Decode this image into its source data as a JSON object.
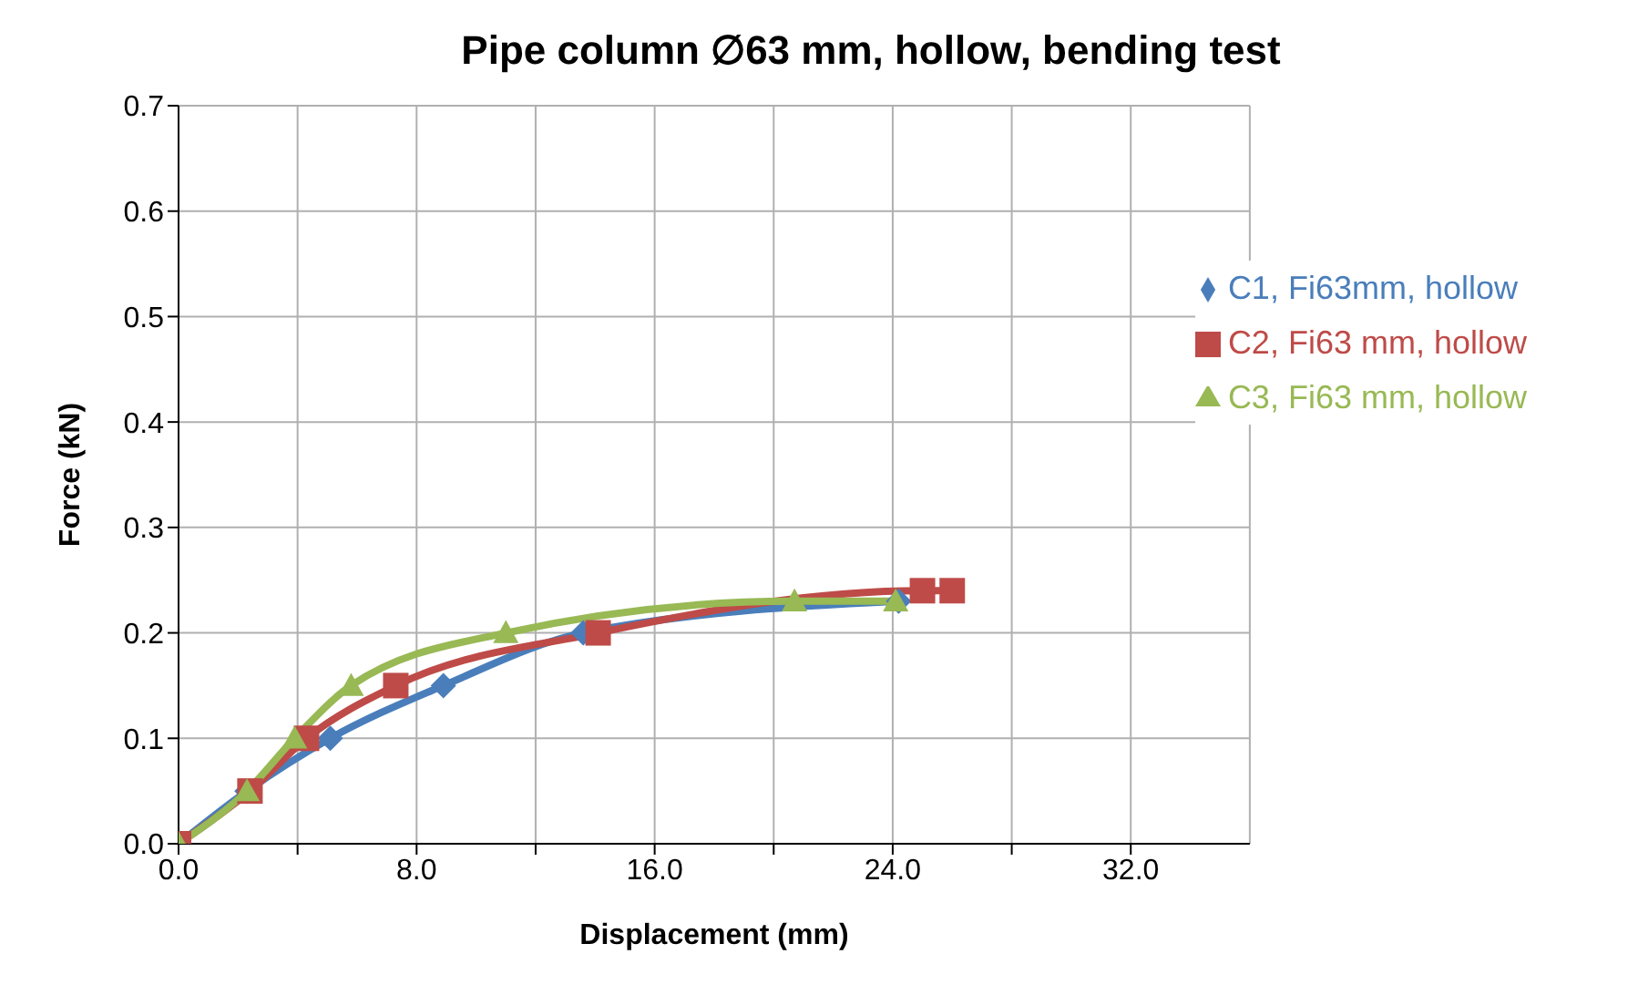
{
  "chart_data": {
    "type": "line",
    "title": "Pipe column ∅63 mm, hollow, bending test",
    "xlabel": "Displacement (mm)",
    "ylabel": "Force (kN)",
    "xlim": [
      0,
      36
    ],
    "xticks": [
      {
        "value": 0,
        "label": "0.0"
      },
      {
        "value": 4,
        "label": null
      },
      {
        "value": 8,
        "label": "8.0"
      },
      {
        "value": 12,
        "label": null
      },
      {
        "value": 16,
        "label": "16.0"
      },
      {
        "value": 20,
        "label": null
      },
      {
        "value": 24,
        "label": "24.0"
      },
      {
        "value": 28,
        "label": null
      },
      {
        "value": 32,
        "label": "32.0"
      }
    ],
    "ylim": [
      0,
      0.7
    ],
    "yticks": [
      {
        "value": 0,
        "label": "0.0"
      },
      {
        "value": 0.1,
        "label": "0.1"
      },
      {
        "value": 0.2,
        "label": "0.2"
      },
      {
        "value": 0.3,
        "label": "0.3"
      },
      {
        "value": 0.4,
        "label": "0.4"
      },
      {
        "value": 0.5,
        "label": "0.5"
      },
      {
        "value": 0.6,
        "label": "0.6"
      },
      {
        "value": 0.7,
        "label": "0.7"
      }
    ],
    "grid": true,
    "legend": "top right",
    "line_style": "solid",
    "series": [
      {
        "name": "C1, Fi63mm, hollow",
        "color": "#4a7ebb",
        "marker": "diamond",
        "x": [
          0,
          2.3,
          5.1,
          8.9,
          13.6,
          24.2
        ],
        "values": [
          0,
          0.05,
          0.1,
          0.15,
          0.2,
          0.23
        ]
      },
      {
        "name": "C2, Fi63 mm, hollow",
        "color": "#be4b48",
        "marker": "square",
        "x": [
          0,
          2.4,
          4.3,
          7.3,
          14.1,
          25.0,
          26.0
        ],
        "values": [
          0,
          0.05,
          0.1,
          0.15,
          0.2,
          0.24,
          0.24
        ]
      },
      {
        "name": "C3, Fi63 mm, hollow",
        "color": "#98b954",
        "marker": "triangle",
        "x": [
          0,
          2.3,
          3.9,
          5.8,
          11.0,
          20.7,
          24.1
        ],
        "values": [
          0,
          0.05,
          0.1,
          0.15,
          0.2,
          0.23,
          0.23
        ]
      }
    ]
  }
}
